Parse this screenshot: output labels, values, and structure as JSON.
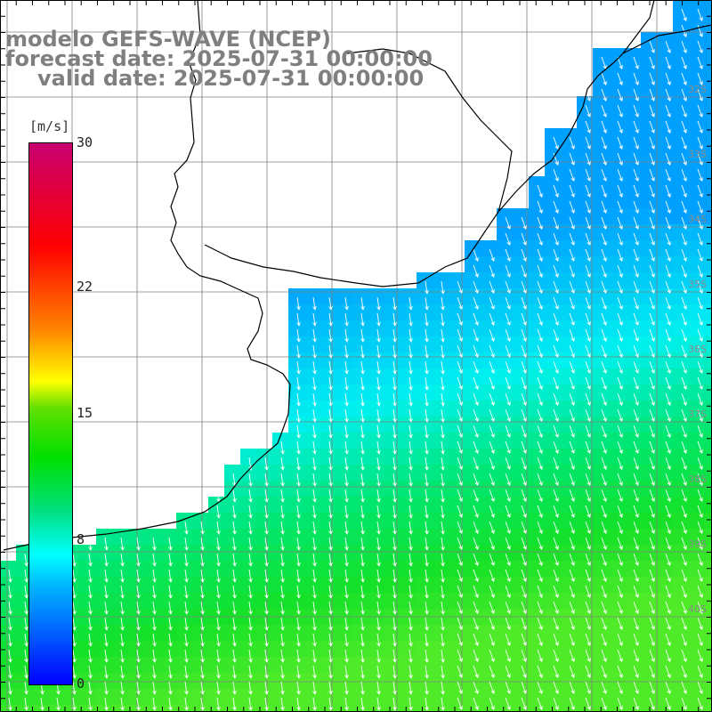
{
  "title": {
    "line1": "modelo GEFS-WAVE (NCEP)",
    "line2": "forecast date: 2025-07-31 00:00:00",
    "line3": "valid date: 2025-07-31 00:00:00"
  },
  "colorbar": {
    "units": "[m/s]",
    "ticks": [
      {
        "value": 30,
        "label": "30"
      },
      {
        "value": 22,
        "label": "22"
      },
      {
        "value": 15,
        "label": "15"
      },
      {
        "value": 8,
        "label": "8"
      },
      {
        "value": 0,
        "label": "0"
      }
    ],
    "min": 0,
    "max": 30,
    "colors": [
      "#0000ff",
      "#00ffff",
      "#00e000",
      "#ffff00",
      "#ff0000",
      "#c80070"
    ]
  },
  "map": {
    "land_color": "#ffffff",
    "gridlines": true,
    "latitude_labels": [
      "32S",
      "33S",
      "34S",
      "35S",
      "36S",
      "37S",
      "38S",
      "39S",
      "40S"
    ],
    "field": "wind speed with direction arrows",
    "arrow_color": "#ffffff"
  }
}
